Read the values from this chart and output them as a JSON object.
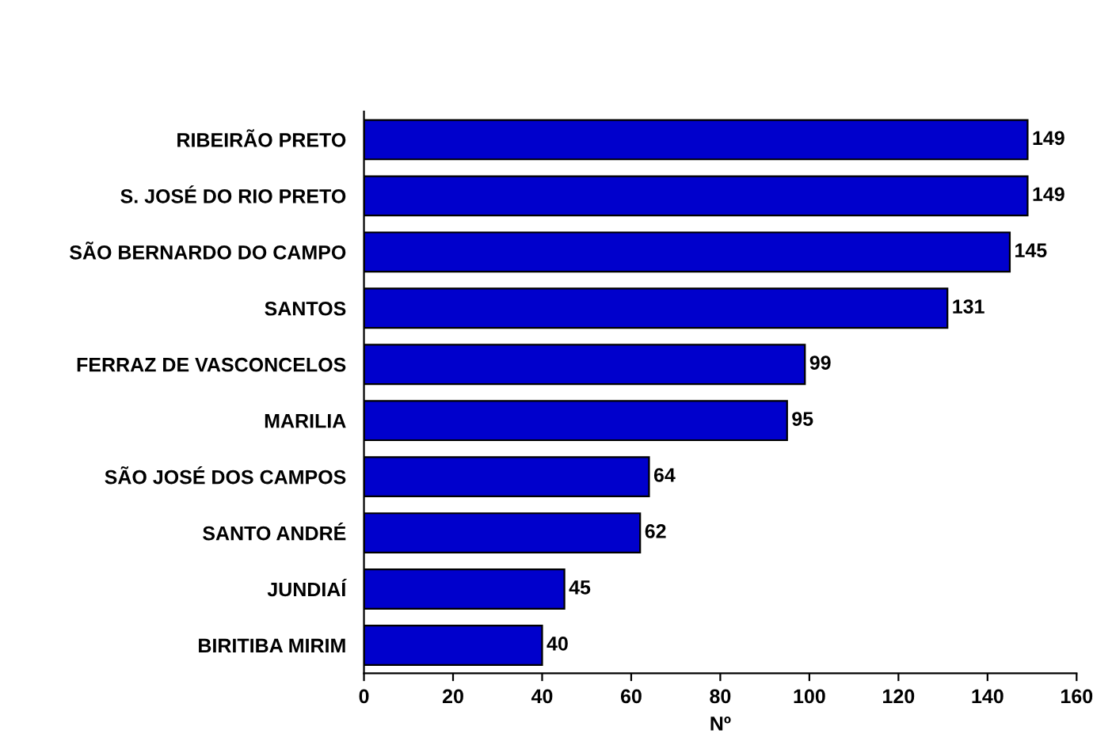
{
  "chart_data": {
    "type": "bar",
    "orientation": "horizontal",
    "xlabel": "Nº",
    "categories": [
      "RIBEIRÃO PRETO",
      "S. JOSÉ DO RIO PRETO",
      "SÃO BERNARDO DO CAMPO",
      "SANTOS",
      "FERRAZ DE VASCONCELOS",
      "MARILIA",
      "SÃO JOSÉ DOS CAMPOS",
      "SANTO ANDRÉ",
      "JUNDIAÍ",
      "BIRITIBA MIRIM"
    ],
    "values": [
      149,
      149,
      145,
      131,
      99,
      95,
      64,
      62,
      45,
      40
    ],
    "color": "#0000cc",
    "xlim": [
      0,
      160
    ],
    "xticks": [
      0,
      20,
      40,
      60,
      80,
      100,
      120,
      140,
      160
    ],
    "data_labels": true,
    "grid": false,
    "legend": false
  }
}
